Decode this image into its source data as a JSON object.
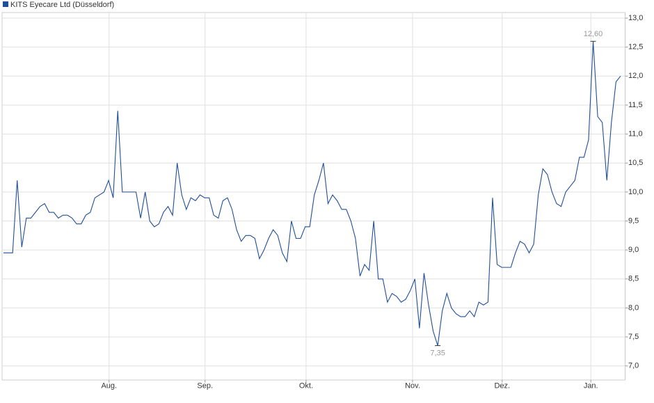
{
  "chart_data": {
    "type": "line",
    "legend": "KITS Eyecare Ltd (Düsseldorf)",
    "series": [
      {
        "name": "KITS Eyecare Ltd (Düsseldorf)",
        "color": "#1f4e9a",
        "values": [
          8.95,
          8.95,
          8.95,
          10.2,
          9.05,
          9.55,
          9.55,
          9.65,
          9.75,
          9.8,
          9.65,
          9.65,
          9.55,
          9.6,
          9.6,
          9.55,
          9.45,
          9.45,
          9.6,
          9.65,
          9.9,
          9.95,
          10.0,
          10.2,
          9.9,
          11.4,
          10.0,
          10.0,
          10.0,
          10.0,
          9.55,
          10.0,
          9.5,
          9.4,
          9.45,
          9.65,
          9.75,
          9.6,
          10.5,
          9.95,
          9.7,
          9.9,
          9.85,
          9.95,
          9.9,
          9.9,
          9.6,
          9.55,
          9.85,
          9.9,
          9.7,
          9.35,
          9.15,
          9.25,
          9.25,
          9.2,
          8.85,
          9.0,
          9.2,
          9.35,
          9.25,
          8.95,
          8.8,
          9.5,
          9.2,
          9.2,
          9.4,
          9.4,
          9.95,
          10.2,
          10.5,
          9.8,
          9.95,
          9.85,
          9.7,
          9.7,
          9.5,
          9.2,
          8.55,
          8.75,
          8.65,
          9.5,
          8.5,
          8.5,
          8.1,
          8.25,
          8.2,
          8.1,
          8.15,
          8.3,
          8.5,
          7.65,
          8.6,
          8.05,
          7.6,
          7.35,
          7.95,
          8.25,
          8.0,
          7.9,
          7.85,
          7.85,
          7.95,
          7.85,
          8.1,
          8.05,
          8.1,
          9.9,
          8.75,
          8.7,
          8.7,
          8.7,
          8.95,
          9.15,
          9.1,
          8.95,
          9.1,
          9.95,
          10.4,
          10.3,
          10.0,
          9.8,
          9.75,
          10.0,
          10.1,
          10.2,
          10.6,
          10.6,
          10.9,
          12.6,
          11.3,
          11.2,
          10.2,
          11.2,
          11.9,
          12.0
        ]
      }
    ],
    "xlim": [
      0,
      136
    ],
    "xticks": [
      {
        "value": 23.1,
        "label": "Aug."
      },
      {
        "value": 44.1,
        "label": "Sep."
      },
      {
        "value": 66.2,
        "label": "Okt."
      },
      {
        "value": 89.5,
        "label": "Nov."
      },
      {
        "value": 109.1,
        "label": "Dez."
      },
      {
        "value": 128.5,
        "label": "Jan."
      }
    ],
    "ylim": [
      6.76,
      13.1
    ],
    "yticks": [
      {
        "value": 7,
        "label": "7,0"
      },
      {
        "value": 7.5,
        "label": "7,5"
      },
      {
        "value": 8,
        "label": "8,0"
      },
      {
        "value": 8.5,
        "label": "8,5"
      },
      {
        "value": 9,
        "label": "9,0"
      },
      {
        "value": 9.5,
        "label": "9,5"
      },
      {
        "value": 10,
        "label": "10,0"
      },
      {
        "value": 10.5,
        "label": "10,5"
      },
      {
        "value": 11,
        "label": "11,0"
      },
      {
        "value": 11.5,
        "label": "11,5"
      },
      {
        "value": 12,
        "label": "12,0"
      },
      {
        "value": 12.5,
        "label": "12,5"
      },
      {
        "value": 13,
        "label": "13,0"
      }
    ],
    "grid": true,
    "annotations": [
      {
        "label": "12,60",
        "value": 12.6,
        "position": "above"
      },
      {
        "label": "7,35",
        "value": 7.35,
        "position": "below"
      }
    ]
  }
}
